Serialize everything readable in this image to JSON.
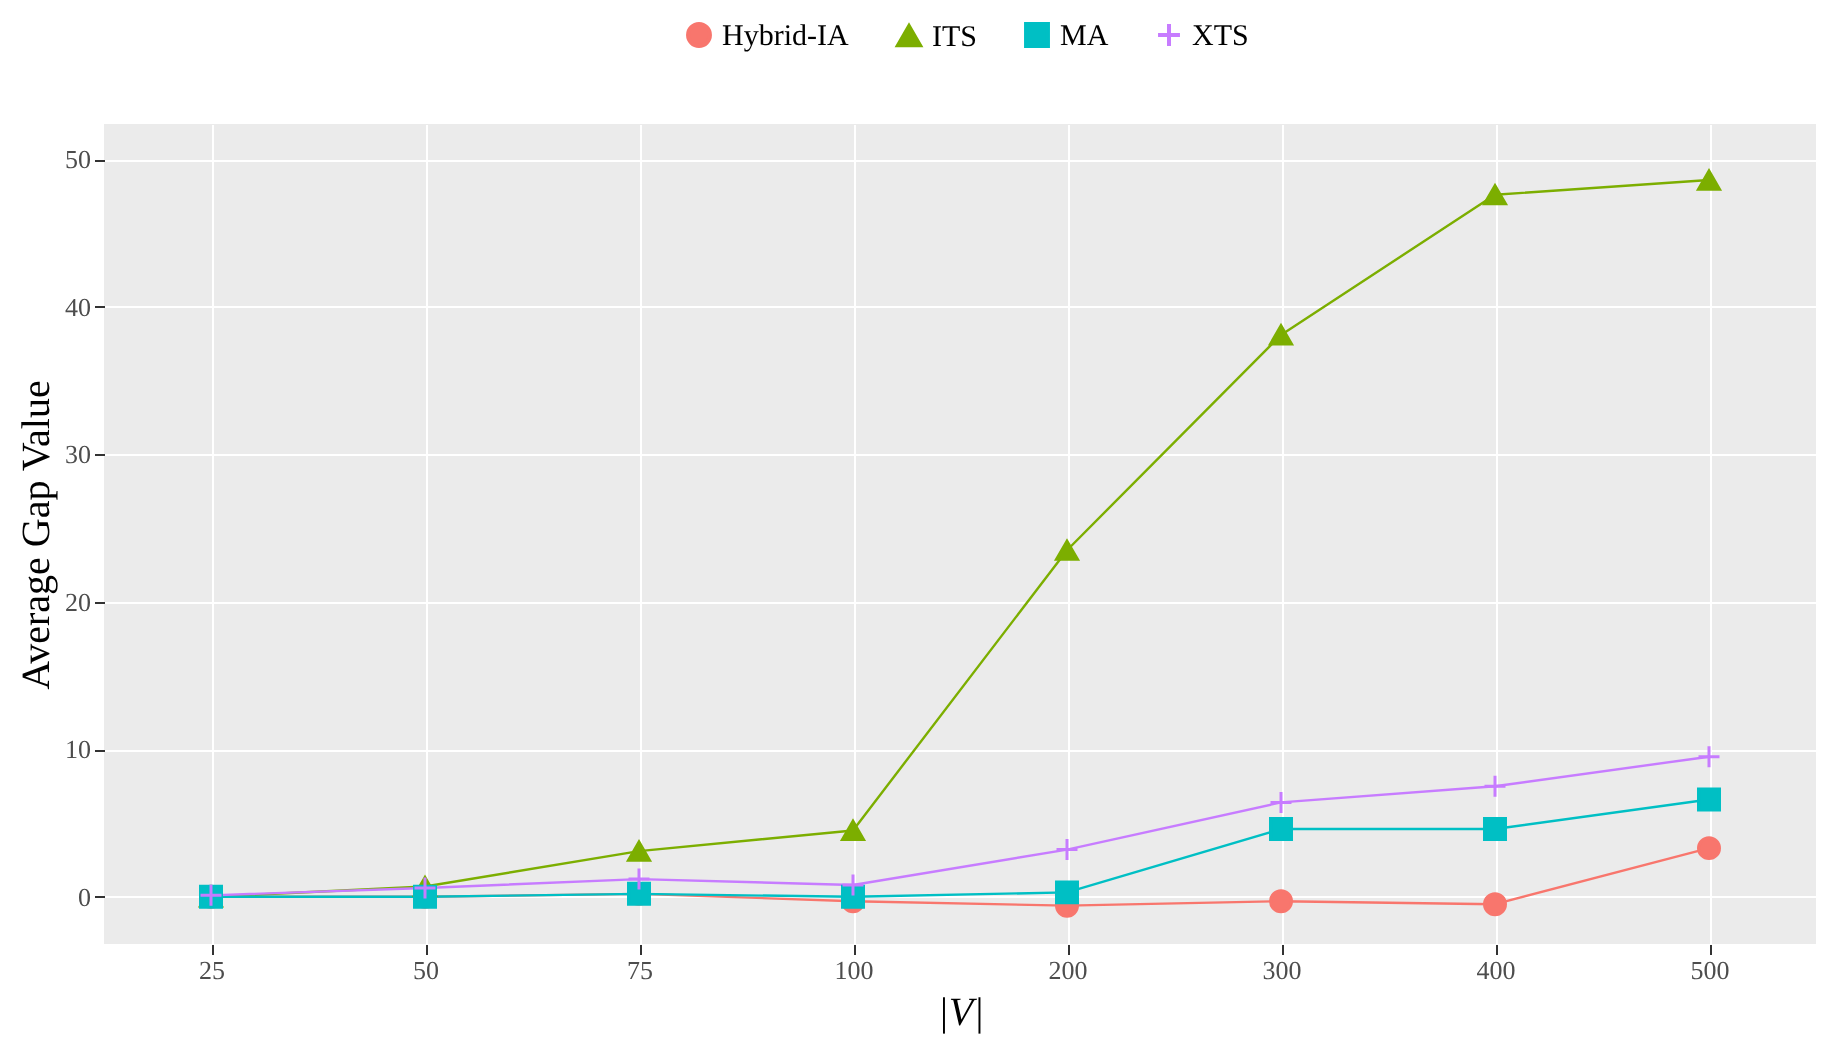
{
  "chart_data": {
    "type": "line",
    "xlabel": "|V|",
    "ylabel": "Average Gap Value",
    "categories": [
      "25",
      "50",
      "75",
      "100",
      "200",
      "300",
      "400",
      "500"
    ],
    "series": [
      {
        "name": "Hybrid-IA",
        "color": "#f8766d",
        "marker": "circle",
        "values": [
          0,
          0,
          0.2,
          -0.3,
          -0.6,
          -0.3,
          -0.5,
          3.3
        ]
      },
      {
        "name": "ITS",
        "color": "#7cae00",
        "marker": "triangle",
        "values": [
          0,
          0.7,
          3.1,
          4.5,
          23.5,
          38.1,
          47.6,
          48.6
        ]
      },
      {
        "name": "MA",
        "color": "#00bfc4",
        "marker": "square",
        "values": [
          0,
          0,
          0.2,
          0,
          0.3,
          4.6,
          4.6,
          6.6
        ]
      },
      {
        "name": "XTS",
        "color": "#c77cff",
        "marker": "cross",
        "values": [
          0.1,
          0.6,
          1.2,
          0.8,
          3.2,
          6.4,
          7.5,
          9.5
        ]
      }
    ],
    "ylim": [
      -3.2,
      52.4
    ],
    "yticks": [
      0,
      10,
      20,
      30,
      40,
      50
    ],
    "grid": true,
    "legend": "top"
  }
}
